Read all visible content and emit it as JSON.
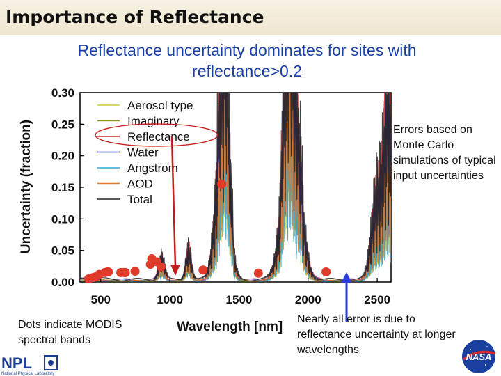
{
  "slide": {
    "title": "Importance of Reflectance",
    "subtitle": "Reflectance uncertainty dominates for sites with reflectance>0.2",
    "note_right": "Errors based on Monte Carlo simulations of typical input uncertainties",
    "note_left": "Dots indicate MODIS spectral bands",
    "note_bottom": "Nearly all error is due to reflectance uncertainty at longer wavelengths",
    "logo_left_text": "NPL",
    "logo_left_sub": "National Physical Laboratory",
    "logo_right_text": "NASA"
  },
  "colors": {
    "subtitle": "#1a3fa8",
    "highlight": "#cc1f1f",
    "arrow_blue": "#2b3fd6",
    "dots": "#e03a2a"
  },
  "chart_data": {
    "type": "line",
    "xlabel": "Wavelength [nm]",
    "ylabel": "Uncertainty (fraction)",
    "xlim": [
      350,
      2600
    ],
    "ylim": [
      0,
      0.3
    ],
    "x_ticks": [
      "500",
      "1000",
      "1500",
      "2000",
      "2500"
    ],
    "y_ticks": [
      "0.00",
      "0.05",
      "0.10",
      "0.15",
      "0.20",
      "0.25",
      "0.30"
    ],
    "legend_position": "top-left",
    "series": [
      {
        "name": "Aerosol type",
        "color": "#c9c93a"
      },
      {
        "name": "Imaginary",
        "color": "#9a9a2a"
      },
      {
        "name": "Reflectance",
        "color": "#cc2a2a"
      },
      {
        "name": "Water",
        "color": "#3a3ad0"
      },
      {
        "name": "Angstrom",
        "color": "#2aa8d8"
      },
      {
        "name": "AOD",
        "color": "#e07a2a"
      },
      {
        "name": "Total",
        "color": "#222222"
      }
    ],
    "modis_bands": {
      "x": [
        412,
        443,
        469,
        488,
        531,
        547,
        555,
        645,
        667,
        678,
        748,
        859,
        869,
        905,
        936,
        1240,
        1375,
        1640,
        2130
      ],
      "y": [
        0.005,
        0.007,
        0.009,
        0.012,
        0.015,
        0.016,
        0.016,
        0.015,
        0.015,
        0.015,
        0.017,
        0.028,
        0.037,
        0.032,
        0.024,
        0.019,
        0.155,
        0.014,
        0.016
      ]
    }
  }
}
